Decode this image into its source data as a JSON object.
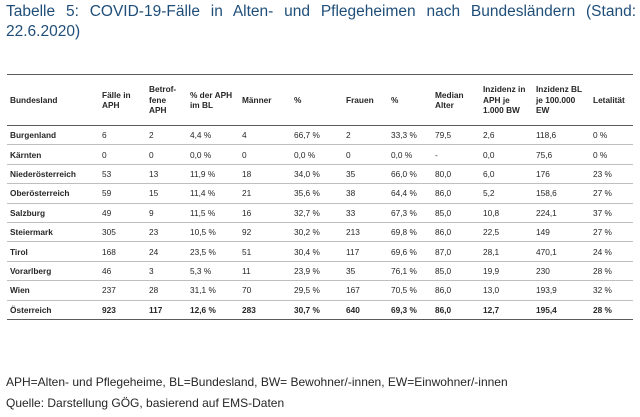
{
  "caption": {
    "line1": "Tabelle 5: COVID-19-Fälle in Alten- und Pflegeheimen nach Bundesländern (Stand:",
    "line2": "22.6.2020)"
  },
  "table": {
    "headers": [
      "Bundesland",
      "Fälle in APH",
      "Betrof-fene APH",
      "% der APH im BL",
      "Männer",
      "%",
      "Frauen",
      "%",
      "Median Alter",
      "Inzidenz in APH je 1.000 BW",
      "Inzidenz BL je 100.000 EW",
      "Letalität"
    ],
    "rows": [
      [
        "Burgenland",
        "6",
        "2",
        "4,4 %",
        "4",
        "66,7 %",
        "2",
        "33,3 %",
        "79,5",
        "2,6",
        "118,6",
        "0 %"
      ],
      [
        "Kärnten",
        "0",
        "0",
        "0,0 %",
        "0",
        "0,0 %",
        "0",
        "0,0 %",
        "-",
        "0,0",
        "75,6",
        "0 %"
      ],
      [
        "Niederösterreich",
        "53",
        "13",
        "11,9 %",
        "18",
        "34,0 %",
        "35",
        "66,0 %",
        "80,0",
        "6,0",
        "176",
        "23 %"
      ],
      [
        "Oberösterreich",
        "59",
        "15",
        "11,4 %",
        "21",
        "35,6 %",
        "38",
        "64,4 %",
        "86,0",
        "5,2",
        "158,6",
        "27 %"
      ],
      [
        "Salzburg",
        "49",
        "9",
        "11,5 %",
        "16",
        "32,7 %",
        "33",
        "67,3 %",
        "85,0",
        "10,8",
        "224,1",
        "37 %"
      ],
      [
        "Steiermark",
        "305",
        "23",
        "10,5 %",
        "92",
        "30,2 %",
        "213",
        "69,8 %",
        "86,0",
        "22,5",
        "149",
        "27 %"
      ],
      [
        "Tirol",
        "168",
        "24",
        "23,5 %",
        "51",
        "30,4 %",
        "117",
        "69,6 %",
        "87,0",
        "28,1",
        "470,1",
        "24 %"
      ],
      [
        "Vorarlberg",
        "46",
        "3",
        "5,3 %",
        "11",
        "23,9 %",
        "35",
        "76,1 %",
        "85,0",
        "19,9",
        "230",
        "28 %"
      ],
      [
        "Wien",
        "237",
        "28",
        "31,1 %",
        "70",
        "29,5 %",
        "167",
        "70,5 %",
        "86,0",
        "13,0",
        "193,9",
        "32 %"
      ],
      [
        "Österreich",
        "923",
        "117",
        "12,6 %",
        "283",
        "30,7 %",
        "640",
        "69,3 %",
        "86,0",
        "12,7",
        "195,4",
        "28 %"
      ]
    ]
  },
  "footnotes": {
    "abbreviations": "APH=Alten- und Pflegeheime, BL=Bundesland, BW= Bewohner/-innen, EW=Einwohner/-innen",
    "source": "Quelle: Darstellung GÖG, basierend auf EMS-Daten"
  }
}
